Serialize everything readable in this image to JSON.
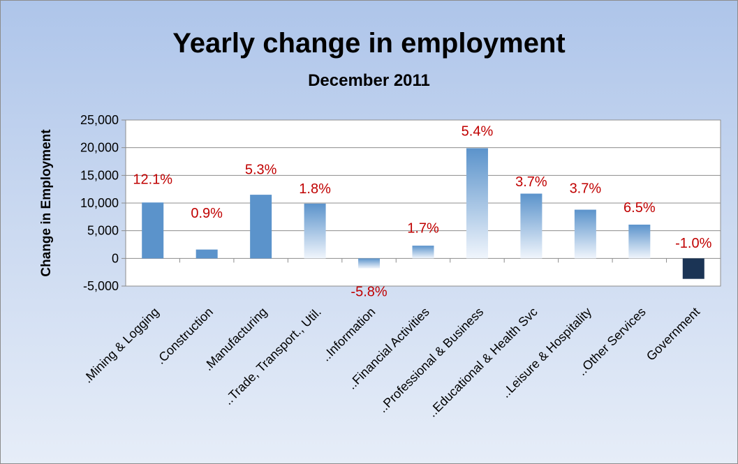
{
  "chart_data": {
    "type": "bar",
    "title": "Yearly change in employment",
    "subtitle": "December 2011",
    "xlabel": "",
    "ylabel": "Change in Employment",
    "ylim": [
      -5000,
      25000
    ],
    "yticks": [
      "25,000",
      "20,000",
      "15,000",
      "10,000",
      "5,000",
      "0",
      "-5,000"
    ],
    "ytick_values": [
      25000,
      20000,
      15000,
      10000,
      5000,
      0,
      -5000
    ],
    "grid": true,
    "legend": "none",
    "categories": [
      ".Mining & Logging",
      ".Construction",
      ".Manufacturing",
      "..Trade, Transport., Util.",
      "..Information",
      "..Financial Activities",
      "..Professional & Business",
      "..Educational & Health Svc",
      "..Leisure & Hospitality",
      "..Other Services",
      "Government"
    ],
    "values": [
      10100,
      1600,
      11500,
      9900,
      -1800,
      2300,
      19900,
      11700,
      8800,
      6100,
      -3700
    ],
    "data_labels": [
      "12.1%",
      "0.9%",
      "5.3%",
      "1.8%",
      "-5.8%",
      "1.7%",
      "5.4%",
      "3.7%",
      "3.7%",
      "6.5%",
      "-1.0%"
    ],
    "bar_styles": [
      "solid",
      "solid",
      "solid",
      "gradient",
      "gradient",
      "gradient",
      "gradient",
      "gradient",
      "gradient",
      "gradient",
      "dark"
    ]
  },
  "colors": {
    "solid_bar": "#5b93cb",
    "gradient_top": "#5b93cb",
    "gradient_bottom": "#f0f5fc",
    "dark_bar": "#1b3455",
    "label_red": "#c00000",
    "grid": "#8c8c8c"
  }
}
